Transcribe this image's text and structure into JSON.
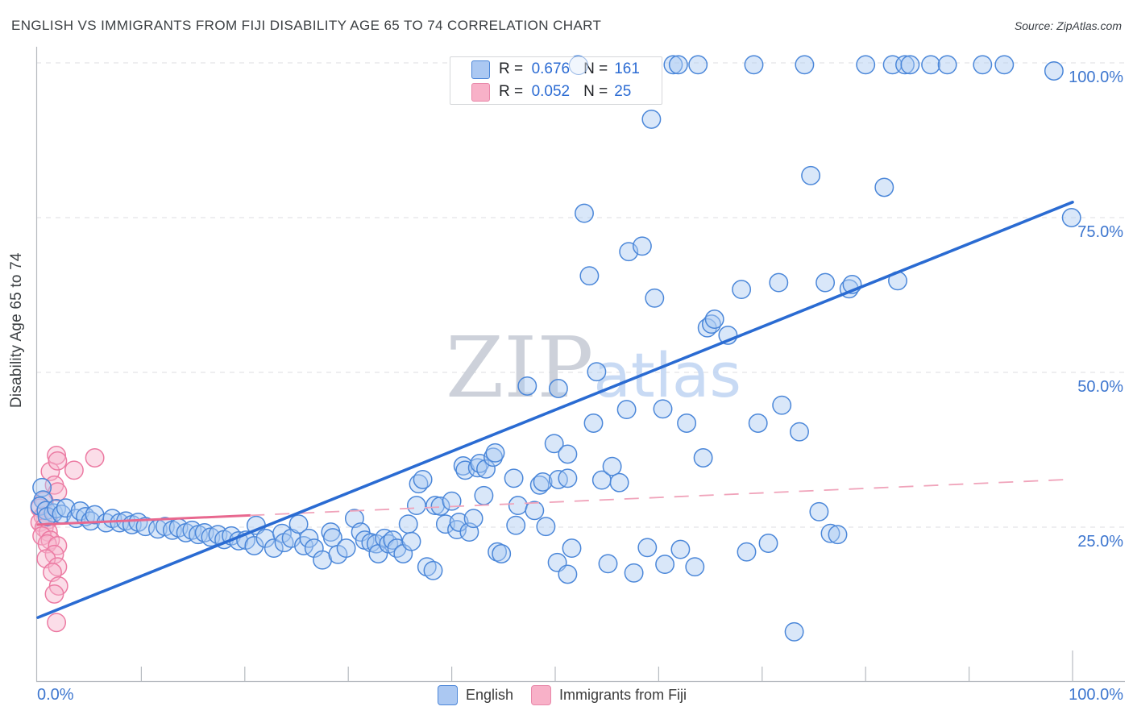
{
  "title": "ENGLISH VS IMMIGRANTS FROM FIJI DISABILITY AGE 65 TO 74 CORRELATION CHART",
  "source": "Source: ZipAtlas.com",
  "watermark": {
    "zip": "ZIP",
    "atlas": "atlas"
  },
  "y_axis": {
    "title": "Disability Age 65 to 74",
    "labels": [
      "100.0%",
      "75.0%",
      "50.0%",
      "25.0%"
    ],
    "tick_values": [
      100,
      75,
      50,
      25
    ]
  },
  "x_axis": {
    "min_label": "0.0%",
    "max_label": "100.0%",
    "tick_values": [
      10,
      20,
      30,
      40,
      50,
      60,
      70,
      80,
      90,
      100
    ]
  },
  "stats_legend": {
    "rows": [
      {
        "series": "English",
        "r_label": "R =",
        "r_value": "0.676",
        "n_label": "N =",
        "n_value": "161"
      },
      {
        "series": "Immigrants from Fiji",
        "r_label": "R =",
        "r_value": "0.052",
        "n_label": "N =",
        "n_value": "25"
      }
    ]
  },
  "bottom_legend": {
    "items": [
      {
        "label": "English",
        "color": "#abc8f2",
        "border": "#4c86d8"
      },
      {
        "label": "Immigrants from Fiji",
        "color": "#f8b1c8",
        "border": "#e887a9"
      }
    ]
  },
  "colors": {
    "label_blue": "#3d76cf",
    "legend_value_blue": "#2b6bd3",
    "point_blue_stroke": "#4b87d9",
    "point_blue_fill": "#aac9f1",
    "point_pink_stroke": "#ec7ba3",
    "point_pink_fill": "#f6b3cb",
    "trend_blue": "#2a6bd2",
    "trend_pink": "#e8688f",
    "trend_pink_dash": "#f0a3ba",
    "grid": "#dcdee1",
    "axis": "#b6bac0",
    "watermark_gray": "#c8cdd6",
    "watermark_blue": "#c3d7f3"
  },
  "chart_data": {
    "type": "scatter",
    "title": "ENGLISH VS IMMIGRANTS FROM FIJI DISABILITY AGE 65 TO 74 CORRELATION CHART",
    "xlabel": "",
    "ylabel": "Disability Age 65 to 74",
    "xlim": [
      0,
      100
    ],
    "ylim": [
      0,
      100
    ],
    "x_unit": "%",
    "y_unit": "%",
    "grid": "dashed horizontal at 25/50/75/100",
    "legend_position": "top-center-box and bottom-center",
    "series": [
      {
        "name": "English",
        "R": 0.676,
        "N": 161,
        "trend": {
          "x1": 0,
          "y1": 10.4,
          "x2": 100,
          "y2": 77.5,
          "style": "solid"
        },
        "points": [
          [
            0.4,
            31.4
          ],
          [
            0.5,
            29.4
          ],
          [
            0.2,
            28.4
          ],
          [
            0.8,
            27.7
          ],
          [
            1.5,
            27.3
          ],
          [
            0.9,
            26.7
          ],
          [
            1.8,
            28.0
          ],
          [
            2.3,
            27.1
          ],
          [
            2.7,
            28.1
          ],
          [
            3.7,
            26.4
          ],
          [
            4.1,
            27.6
          ],
          [
            4.6,
            26.7
          ],
          [
            5.1,
            26.0
          ],
          [
            5.5,
            27.0
          ],
          [
            6.6,
            25.7
          ],
          [
            7.2,
            26.4
          ],
          [
            7.9,
            25.7
          ],
          [
            8.5,
            26.0
          ],
          [
            9.1,
            25.4
          ],
          [
            9.7,
            25.8
          ],
          [
            10.4,
            25.1
          ],
          [
            11.6,
            24.7
          ],
          [
            12.3,
            25.1
          ],
          [
            13.0,
            24.5
          ],
          [
            13.6,
            24.9
          ],
          [
            14.3,
            24.1
          ],
          [
            14.9,
            24.5
          ],
          [
            15.5,
            23.8
          ],
          [
            16.1,
            24.1
          ],
          [
            16.7,
            23.4
          ],
          [
            17.4,
            23.8
          ],
          [
            18.0,
            23.0
          ],
          [
            18.7,
            23.6
          ],
          [
            19.4,
            22.8
          ],
          [
            20.1,
            22.9
          ],
          [
            20.9,
            22.0
          ],
          [
            21.1,
            25.3
          ],
          [
            22.0,
            23.2
          ],
          [
            22.8,
            21.6
          ],
          [
            23.6,
            24.0
          ],
          [
            23.8,
            22.5
          ],
          [
            24.5,
            23.2
          ],
          [
            25.2,
            25.5
          ],
          [
            25.7,
            22.0
          ],
          [
            26.2,
            23.2
          ],
          [
            26.7,
            21.6
          ],
          [
            27.5,
            19.7
          ],
          [
            28.3,
            24.2
          ],
          [
            28.5,
            23.3
          ],
          [
            29.0,
            20.6
          ],
          [
            29.8,
            21.6
          ],
          [
            30.6,
            26.4
          ],
          [
            31.2,
            24.2
          ],
          [
            31.6,
            22.9
          ],
          [
            32.2,
            22.5
          ],
          [
            32.7,
            22.3
          ],
          [
            32.9,
            20.7
          ],
          [
            33.5,
            23.2
          ],
          [
            33.9,
            22.3
          ],
          [
            34.3,
            22.9
          ],
          [
            34.7,
            21.6
          ],
          [
            35.3,
            20.7
          ],
          [
            35.8,
            25.5
          ],
          [
            36.1,
            22.7
          ],
          [
            36.6,
            28.5
          ],
          [
            36.8,
            32.0
          ],
          [
            37.2,
            32.7
          ],
          [
            37.6,
            18.6
          ],
          [
            38.2,
            18.0
          ],
          [
            38.4,
            28.5
          ],
          [
            38.9,
            28.4
          ],
          [
            39.4,
            25.5
          ],
          [
            40.0,
            29.2
          ],
          [
            40.5,
            24.6
          ],
          [
            40.7,
            25.8
          ],
          [
            41.1,
            34.9
          ],
          [
            41.3,
            34.2
          ],
          [
            41.7,
            24.2
          ],
          [
            42.1,
            26.4
          ],
          [
            42.5,
            34.6
          ],
          [
            42.7,
            35.3
          ],
          [
            43.1,
            30.1
          ],
          [
            43.3,
            34.4
          ],
          [
            44.0,
            36.3
          ],
          [
            44.2,
            37.0
          ],
          [
            44.4,
            21.0
          ],
          [
            44.8,
            20.7
          ],
          [
            46.0,
            32.9
          ],
          [
            46.2,
            25.3
          ],
          [
            46.4,
            28.5
          ],
          [
            47.3,
            47.8
          ],
          [
            48.0,
            27.7
          ],
          [
            48.5,
            31.8
          ],
          [
            48.8,
            32.3
          ],
          [
            49.1,
            25.1
          ],
          [
            49.9,
            38.5
          ],
          [
            50.2,
            19.3
          ],
          [
            50.3,
            47.4
          ],
          [
            50.3,
            32.7
          ],
          [
            51.2,
            17.4
          ],
          [
            51.2,
            36.8
          ],
          [
            51.2,
            32.9
          ],
          [
            51.6,
            21.6
          ],
          [
            52.8,
            75.7
          ],
          [
            53.3,
            65.6
          ],
          [
            53.7,
            41.8
          ],
          [
            54.0,
            50.1
          ],
          [
            54.5,
            32.6
          ],
          [
            55.1,
            19.1
          ],
          [
            55.5,
            34.8
          ],
          [
            56.2,
            32.2
          ],
          [
            56.9,
            44.0
          ],
          [
            57.1,
            69.5
          ],
          [
            57.6,
            17.6
          ],
          [
            58.4,
            70.4
          ],
          [
            58.9,
            21.7
          ],
          [
            59.3,
            90.9
          ],
          [
            59.6,
            62.0
          ],
          [
            60.4,
            44.1
          ],
          [
            60.6,
            19.0
          ],
          [
            62.1,
            21.4
          ],
          [
            62.7,
            41.8
          ],
          [
            63.5,
            18.6
          ],
          [
            64.3,
            36.2
          ],
          [
            64.7,
            57.2
          ],
          [
            65.1,
            57.8
          ],
          [
            65.4,
            58.6
          ],
          [
            66.7,
            56.0
          ],
          [
            68.0,
            63.4
          ],
          [
            68.5,
            21.0
          ],
          [
            69.6,
            41.8
          ],
          [
            70.6,
            22.4
          ],
          [
            71.6,
            64.5
          ],
          [
            71.9,
            44.7
          ],
          [
            73.1,
            8.1
          ],
          [
            73.6,
            40.4
          ],
          [
            74.7,
            81.8
          ],
          [
            75.5,
            27.5
          ],
          [
            76.1,
            64.5
          ],
          [
            76.6,
            24.0
          ],
          [
            77.3,
            23.8
          ],
          [
            78.4,
            63.5
          ],
          [
            78.7,
            64.2
          ],
          [
            81.8,
            79.9
          ],
          [
            83.1,
            64.8
          ],
          [
            52.2,
            99.7
          ],
          [
            61.4,
            99.7
          ],
          [
            61.9,
            99.7
          ],
          [
            63.8,
            99.7
          ],
          [
            69.2,
            99.7
          ],
          [
            74.1,
            99.7
          ],
          [
            80.0,
            99.7
          ],
          [
            82.6,
            99.7
          ],
          [
            83.8,
            99.7
          ],
          [
            84.3,
            99.7
          ],
          [
            86.3,
            99.7
          ],
          [
            87.9,
            99.7
          ],
          [
            91.3,
            99.7
          ],
          [
            93.4,
            99.7
          ],
          [
            98.2,
            98.7
          ],
          [
            99.9,
            75.0
          ]
        ]
      },
      {
        "name": "Immigrants from Fiji",
        "R": 0.052,
        "N": 25,
        "trend": {
          "x1": 0,
          "y1": 25.4,
          "x2": 99.6,
          "y2": 32.7,
          "style": "solid then dashed",
          "solid_until_x": 20.5
        },
        "points": [
          [
            1.8,
            36.6
          ],
          [
            5.5,
            36.2
          ],
          [
            3.5,
            34.2
          ],
          [
            1.2,
            34.0
          ],
          [
            1.9,
            35.7
          ],
          [
            1.6,
            31.8
          ],
          [
            1.9,
            30.7
          ],
          [
            0.6,
            29.2
          ],
          [
            0.2,
            28.1
          ],
          [
            0.5,
            26.8
          ],
          [
            1.0,
            26.2
          ],
          [
            0.2,
            25.8
          ],
          [
            0.6,
            24.9
          ],
          [
            1.0,
            24.2
          ],
          [
            0.4,
            23.6
          ],
          [
            1.2,
            22.9
          ],
          [
            0.9,
            22.3
          ],
          [
            1.9,
            22.0
          ],
          [
            1.6,
            20.6
          ],
          [
            0.8,
            19.9
          ],
          [
            1.9,
            18.6
          ],
          [
            1.4,
            17.7
          ],
          [
            2.0,
            15.5
          ],
          [
            1.6,
            14.2
          ],
          [
            1.8,
            9.6
          ]
        ]
      }
    ]
  }
}
